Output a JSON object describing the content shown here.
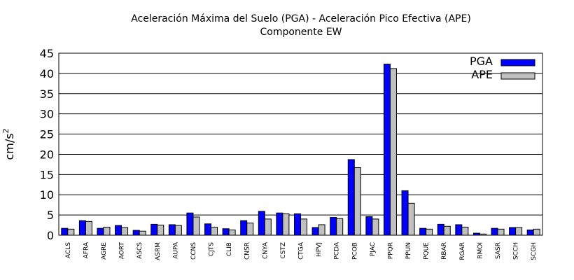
{
  "chart_data": {
    "type": "bar",
    "title": "Aceleración Máxima del Suelo (PGA) -  Aceleración Pico Efectiva (APE)",
    "subtitle": "Componente EW",
    "ylabel": "cm/s",
    "ylabel_sup": "2",
    "xlabel": "",
    "ylim": [
      0,
      45
    ],
    "yticks": [
      "0",
      "5",
      "10",
      "15",
      "20",
      "25",
      "30",
      "35",
      "40",
      "45"
    ],
    "grid": "horizontal",
    "legend_position": "top-right",
    "categories": [
      "ACLS",
      "AFRA",
      "AGRE",
      "AORT",
      "ASCS",
      "ASRM",
      "AUPA",
      "CCNS",
      "CJTS",
      "CLIB",
      "CNSR",
      "CNYA",
      "CSTZ",
      "CTGA",
      "HPVJ",
      "PCDA",
      "PCOB",
      "PJAC",
      "PPQR",
      "PPUN",
      "PQUE",
      "RBAR",
      "RGAR",
      "RMOI",
      "SASR",
      "SCCH",
      "SCGH"
    ],
    "series": [
      {
        "name": "PGA",
        "color": "#0000ff",
        "values": [
          1.7,
          3.6,
          1.7,
          2.4,
          1.2,
          2.7,
          2.6,
          5.5,
          2.8,
          1.6,
          3.6,
          5.9,
          5.5,
          5.3,
          1.9,
          4.4,
          18.7,
          4.6,
          42.3,
          11.0,
          1.7,
          2.7,
          2.6,
          0.5,
          1.7,
          1.9,
          1.3
        ]
      },
      {
        "name": "APE",
        "color": "#c0c0c0",
        "values": [
          1.5,
          3.4,
          2.0,
          1.9,
          1.0,
          2.5,
          2.4,
          4.5,
          2.0,
          1.3,
          3.0,
          4.0,
          5.3,
          4.0,
          2.6,
          4.1,
          16.7,
          4.0,
          41.2,
          7.9,
          1.5,
          2.2,
          2.0,
          0.3,
          1.5,
          1.9,
          1.5
        ]
      }
    ]
  }
}
